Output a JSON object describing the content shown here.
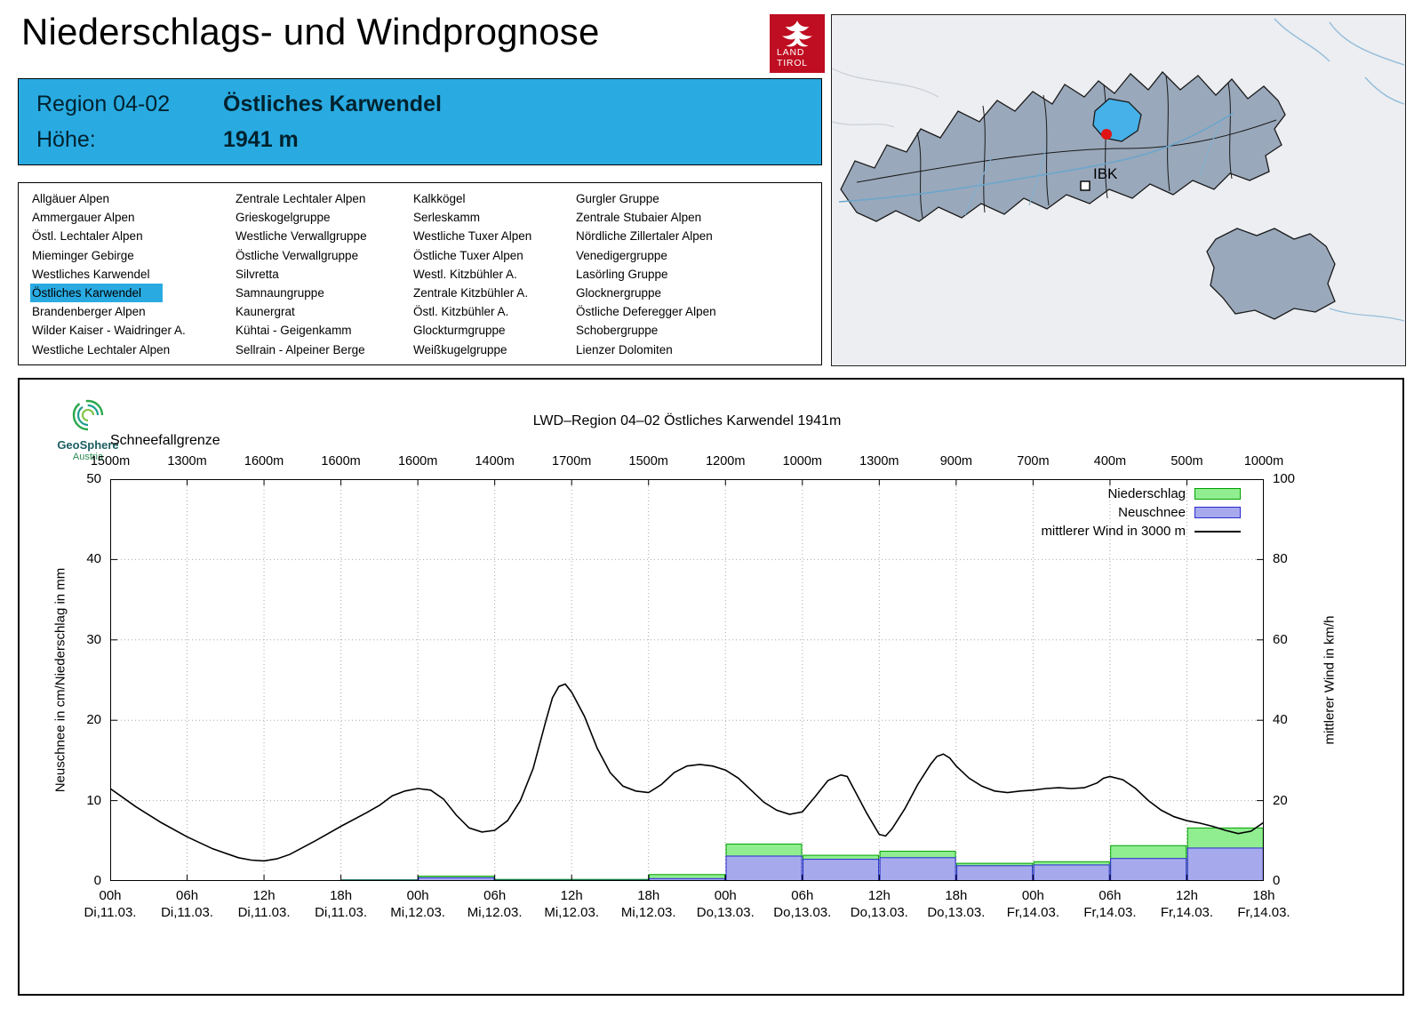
{
  "page": {
    "title": "Niederschlags- und Windprognose"
  },
  "tirol_logo": {
    "line1": "LAND",
    "line2": "TIROL"
  },
  "header": {
    "region_label": "Region 04-02",
    "region_name": "Östliches Karwendel",
    "hoehe_label": "Höhe:",
    "hoehe_value": "1941 m"
  },
  "region_list": {
    "selected": "Östliches Karwendel",
    "columns": [
      [
        "Allgäuer Alpen",
        "Ammergauer Alpen",
        "Östl. Lechtaler Alpen",
        "Mieminger Gebirge",
        "Westliches Karwendel",
        "Östliches Karwendel",
        "Brandenberger Alpen",
        "Wilder Kaiser - Waidringer A.",
        "Westliche Lechtaler Alpen"
      ],
      [
        "Zentrale Lechtaler Alpen",
        "Grieskogelgruppe",
        "Westliche Verwallgruppe",
        "Östliche Verwallgruppe",
        "Silvretta",
        "Samnaungruppe",
        "Kaunergrat",
        "Kühtai - Geigenkamm",
        "Sellrain - Alpeiner Berge"
      ],
      [
        "Kalkkögel",
        "Serleskamm",
        "Westliche Tuxer Alpen",
        "Östliche Tuxer Alpen",
        "Westl. Kitzbühler A.",
        "Zentrale Kitzbühler A.",
        "Östl. Kitzbühler A.",
        "Glockturmgruppe",
        "Weißkugelgruppe"
      ],
      [
        "Gurgler Gruppe",
        "Zentrale Stubaier Alpen",
        "Nördliche Zillertaler Alpen",
        "Venedigergruppe",
        "Lasörling Gruppe",
        "Glocknergruppe",
        "Östliche Deferegger Alpen",
        "Schobergruppe",
        "Lienzer Dolomiten"
      ]
    ]
  },
  "map": {
    "marker_label": "IBK",
    "highlight_color": "#45b1e8",
    "region_fill": "#9aa8bb"
  },
  "chart": {
    "provider": {
      "name": "GeoSphere",
      "sub": "Austria"
    },
    "title": "LWD–Region 04–02 Östliches Karwendel 1941m",
    "snowline_label": "Schneefallgrenze"
  },
  "chart_data": {
    "type": "bar",
    "title": "LWD–Region 04–02 Östliches Karwendel 1941m",
    "x_hours_total": 90,
    "x_ticks": [
      {
        "time": "00h",
        "date": "Di,11.03."
      },
      {
        "time": "06h",
        "date": "Di,11.03."
      },
      {
        "time": "12h",
        "date": "Di,11.03."
      },
      {
        "time": "18h",
        "date": "Di,11.03."
      },
      {
        "time": "00h",
        "date": "Mi,12.03."
      },
      {
        "time": "06h",
        "date": "Mi,12.03."
      },
      {
        "time": "12h",
        "date": "Mi,12.03."
      },
      {
        "time": "18h",
        "date": "Mi,12.03."
      },
      {
        "time": "00h",
        "date": "Do,13.03."
      },
      {
        "time": "06h",
        "date": "Do,13.03."
      },
      {
        "time": "12h",
        "date": "Do,13.03."
      },
      {
        "time": "18h",
        "date": "Do,13.03."
      },
      {
        "time": "00h",
        "date": "Fr,14.03."
      },
      {
        "time": "06h",
        "date": "Fr,14.03."
      },
      {
        "time": "12h",
        "date": "Fr,14.03."
      },
      {
        "time": "18h",
        "date": "Fr,14.03."
      }
    ],
    "snowline": [
      "1500m",
      "1300m",
      "1600m",
      "1600m",
      "1600m",
      "1400m",
      "1700m",
      "1500m",
      "1200m",
      "1000m",
      "1300m",
      "900m",
      "700m",
      "400m",
      "500m",
      "1000m"
    ],
    "y_left": {
      "label": "Neuschnee in cm/Niederschlag in mm",
      "range": [
        0,
        50
      ],
      "ticks": [
        0,
        10,
        20,
        30,
        40,
        50
      ]
    },
    "y_right": {
      "label": "mittlerer Wind in km/h",
      "range": [
        0,
        100
      ],
      "ticks": [
        0,
        20,
        40,
        60,
        80,
        100
      ]
    },
    "grid": "dotted",
    "legend_position": "top-right",
    "series": [
      {
        "name": "Niederschlag",
        "type": "bar",
        "axis": "left",
        "color": "#90ee90",
        "border": "#00a000",
        "values": [
          0,
          0,
          0,
          0.15,
          0.6,
          0.2,
          0.2,
          0.8,
          4.6,
          3.2,
          3.7,
          2.2,
          2.4,
          4.4,
          6.6
        ]
      },
      {
        "name": "Neuschnee",
        "type": "bar",
        "axis": "left",
        "color": "#a6aaec",
        "border": "#2a2ad0",
        "values": [
          0,
          0,
          0,
          0.1,
          0.4,
          0.1,
          0.1,
          0.3,
          3.1,
          2.7,
          2.9,
          1.9,
          2.0,
          2.8,
          4.1
        ]
      },
      {
        "name": "mittlerer Wind in 3000 m",
        "type": "line",
        "axis": "right",
        "color": "#000000",
        "points": [
          [
            0,
            23
          ],
          [
            2,
            18.5
          ],
          [
            4,
            14.5
          ],
          [
            6,
            11
          ],
          [
            8,
            8
          ],
          [
            10,
            5.8
          ],
          [
            11,
            5.2
          ],
          [
            12,
            5.0
          ],
          [
            13,
            5.5
          ],
          [
            14,
            6.6
          ],
          [
            16,
            10
          ],
          [
            18,
            13.6
          ],
          [
            20,
            17
          ],
          [
            21,
            18.8
          ],
          [
            22,
            21.2
          ],
          [
            23,
            22.4
          ],
          [
            24,
            23
          ],
          [
            25,
            22.6
          ],
          [
            26,
            20.4
          ],
          [
            27,
            16.4
          ],
          [
            28,
            13.2
          ],
          [
            29,
            12.2
          ],
          [
            30,
            12.6
          ],
          [
            31,
            15
          ],
          [
            32,
            20
          ],
          [
            33,
            28
          ],
          [
            34,
            40
          ],
          [
            34.5,
            45.6
          ],
          [
            35,
            48.4
          ],
          [
            35.5,
            49
          ],
          [
            36,
            47
          ],
          [
            37,
            41
          ],
          [
            38,
            33
          ],
          [
            39,
            27
          ],
          [
            40,
            23.6
          ],
          [
            41,
            22.4
          ],
          [
            42,
            22
          ],
          [
            43,
            24
          ],
          [
            44,
            27
          ],
          [
            45,
            28.6
          ],
          [
            46,
            29
          ],
          [
            47,
            28.6
          ],
          [
            48,
            27.6
          ],
          [
            49,
            25.6
          ],
          [
            50,
            22.6
          ],
          [
            51,
            19.6
          ],
          [
            52,
            17.6
          ],
          [
            53,
            16.6
          ],
          [
            54,
            17.2
          ],
          [
            55,
            21
          ],
          [
            56,
            25
          ],
          [
            57,
            26.4
          ],
          [
            57.5,
            26
          ],
          [
            58,
            23
          ],
          [
            59,
            17
          ],
          [
            60,
            11.6
          ],
          [
            60.5,
            11.2
          ],
          [
            61,
            13
          ],
          [
            62,
            18
          ],
          [
            63,
            24
          ],
          [
            64,
            29
          ],
          [
            64.5,
            31
          ],
          [
            65,
            31.6
          ],
          [
            65.5,
            30.6
          ],
          [
            66,
            28.6
          ],
          [
            67,
            25.6
          ],
          [
            68,
            23.6
          ],
          [
            69,
            22.4
          ],
          [
            70,
            22
          ],
          [
            71,
            22.4
          ],
          [
            72,
            22.6
          ],
          [
            73,
            23
          ],
          [
            74,
            23.2
          ],
          [
            75,
            23
          ],
          [
            76,
            23.2
          ],
          [
            77,
            24.4
          ],
          [
            77.5,
            25.6
          ],
          [
            78,
            26
          ],
          [
            79,
            25.2
          ],
          [
            80,
            23
          ],
          [
            81,
            20
          ],
          [
            82,
            17.6
          ],
          [
            83,
            16
          ],
          [
            84,
            15
          ],
          [
            85,
            14.4
          ],
          [
            86,
            13.6
          ],
          [
            87,
            12.6
          ],
          [
            88,
            11.8
          ],
          [
            89,
            12.4
          ],
          [
            90,
            14.6
          ]
        ]
      }
    ]
  }
}
